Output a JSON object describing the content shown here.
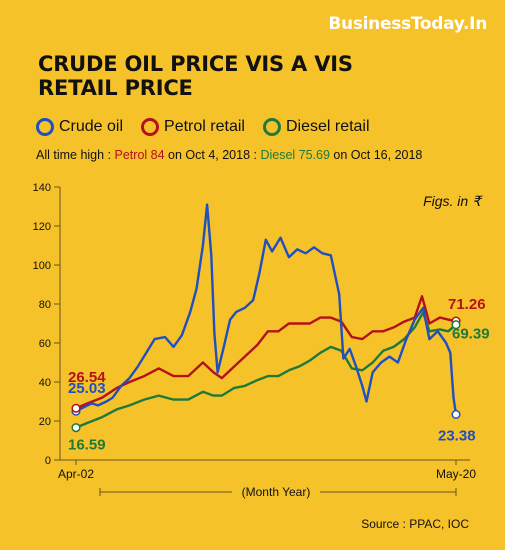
{
  "brand": "BusinessToday.In",
  "title_lines": [
    "CRUDE OIL PRICE VIS A VIS",
    "RETAIL PRICE"
  ],
  "legend": [
    {
      "label": "Crude oil",
      "color": "#1f4fc1"
    },
    {
      "label": "Petrol retail",
      "color": "#b3121b"
    },
    {
      "label": "Diesel retail",
      "color": "#1f7a3a"
    }
  ],
  "subtitle": {
    "prefix": "All time high : ",
    "petrol_text": "Petrol 84",
    "petrol_date": " on Oct 4, 2018 : ",
    "diesel_text": "Diesel 75.69",
    "diesel_date": " on Oct 16, 2018"
  },
  "unit_note": "Figs. in ₹",
  "source": "Source : PPAC, IOC",
  "colors": {
    "background": "#f6c22a",
    "crude": "#1f4fc1",
    "petrol": "#b3121b",
    "diesel": "#1f7a3a",
    "axis": "#6b5420"
  },
  "chart_data": {
    "type": "line",
    "xlabel": "(Month Year)",
    "x_tick_labels": [
      "Apr-02",
      "May-20"
    ],
    "x_range": [
      2002.25,
      2020.37
    ],
    "yticks": [
      0,
      20,
      40,
      60,
      80,
      100,
      120,
      140
    ],
    "ylim": [
      0,
      140
    ],
    "grid": false,
    "legend_position": "top",
    "series": [
      {
        "name": "Crude oil",
        "color": "#1f4fc1",
        "x": [
          2002.25,
          2002.6,
          2003.0,
          2003.3,
          2003.7,
          2004.0,
          2004.4,
          2004.8,
          2005.2,
          2005.6,
          2006.0,
          2006.5,
          2006.9,
          2007.3,
          2007.7,
          2008.0,
          2008.3,
          2008.5,
          2008.7,
          2008.85,
          2009.0,
          2009.3,
          2009.6,
          2009.9,
          2010.3,
          2010.7,
          2011.0,
          2011.3,
          2011.6,
          2012.0,
          2012.4,
          2012.8,
          2013.2,
          2013.6,
          2014.0,
          2014.4,
          2014.8,
          2015.0,
          2015.3,
          2015.6,
          2015.9,
          2016.1,
          2016.4,
          2016.8,
          2017.2,
          2017.6,
          2018.0,
          2018.4,
          2018.8,
          2019.1,
          2019.5,
          2019.9,
          2020.1,
          2020.25,
          2020.37
        ],
        "y": [
          25.03,
          27,
          29,
          28,
          30,
          32,
          38,
          42,
          48,
          55,
          62,
          63,
          58,
          64,
          76,
          88,
          110,
          131,
          105,
          65,
          45,
          58,
          72,
          76,
          78,
          82,
          96,
          113,
          107,
          114,
          104,
          108,
          106,
          109,
          106,
          105,
          85,
          52,
          57,
          48,
          38,
          30,
          45,
          50,
          53,
          50,
          62,
          72,
          78,
          62,
          66,
          60,
          55,
          32,
          23.38
        ]
      },
      {
        "name": "Petrol retail",
        "color": "#b3121b",
        "x": [
          2002.25,
          2002.8,
          2003.5,
          2004.2,
          2004.8,
          2005.5,
          2006.2,
          2006.9,
          2007.6,
          2008.3,
          2008.8,
          2009.2,
          2009.8,
          2010.3,
          2010.9,
          2011.4,
          2011.9,
          2012.4,
          2012.9,
          2013.4,
          2013.9,
          2014.4,
          2014.9,
          2015.4,
          2015.9,
          2016.4,
          2016.9,
          2017.4,
          2017.9,
          2018.4,
          2018.75,
          2019.1,
          2019.6,
          2020.0,
          2020.37
        ],
        "y": [
          26.54,
          29,
          32,
          37,
          40,
          43,
          47,
          43,
          43,
          50,
          45,
          42,
          48,
          53,
          59,
          66,
          66,
          70,
          70,
          70,
          73,
          73,
          71,
          63,
          62,
          66,
          66,
          68,
          71,
          73,
          84,
          70,
          73,
          72,
          71.26
        ]
      },
      {
        "name": "Diesel retail",
        "color": "#1f7a3a",
        "x": [
          2002.25,
          2002.8,
          2003.5,
          2004.2,
          2004.8,
          2005.5,
          2006.2,
          2006.9,
          2007.6,
          2008.3,
          2008.8,
          2009.2,
          2009.8,
          2010.3,
          2010.9,
          2011.4,
          2011.9,
          2012.4,
          2012.9,
          2013.4,
          2013.9,
          2014.4,
          2014.9,
          2015.4,
          2015.9,
          2016.4,
          2016.9,
          2017.4,
          2017.9,
          2018.4,
          2018.8,
          2019.1,
          2019.6,
          2020.0,
          2020.37
        ],
        "y": [
          16.59,
          19,
          22,
          26,
          28,
          31,
          33,
          31,
          31,
          35,
          33,
          33,
          37,
          38,
          41,
          43,
          43,
          46,
          48,
          51,
          55,
          58,
          56,
          47,
          46,
          50,
          56,
          58,
          62,
          68,
          75.69,
          66,
          67,
          66,
          69.39
        ]
      }
    ],
    "annotations": [
      {
        "series": "Crude oil",
        "point": "start",
        "text": "25.03"
      },
      {
        "series": "Petrol retail",
        "point": "start",
        "text": "26.54"
      },
      {
        "series": "Diesel retail",
        "point": "start",
        "text": "16.59"
      },
      {
        "series": "Crude oil",
        "point": "end",
        "text": "23.38"
      },
      {
        "series": "Petrol retail",
        "point": "end",
        "text": "71.26"
      },
      {
        "series": "Diesel retail",
        "point": "end",
        "text": "69.39"
      }
    ]
  }
}
